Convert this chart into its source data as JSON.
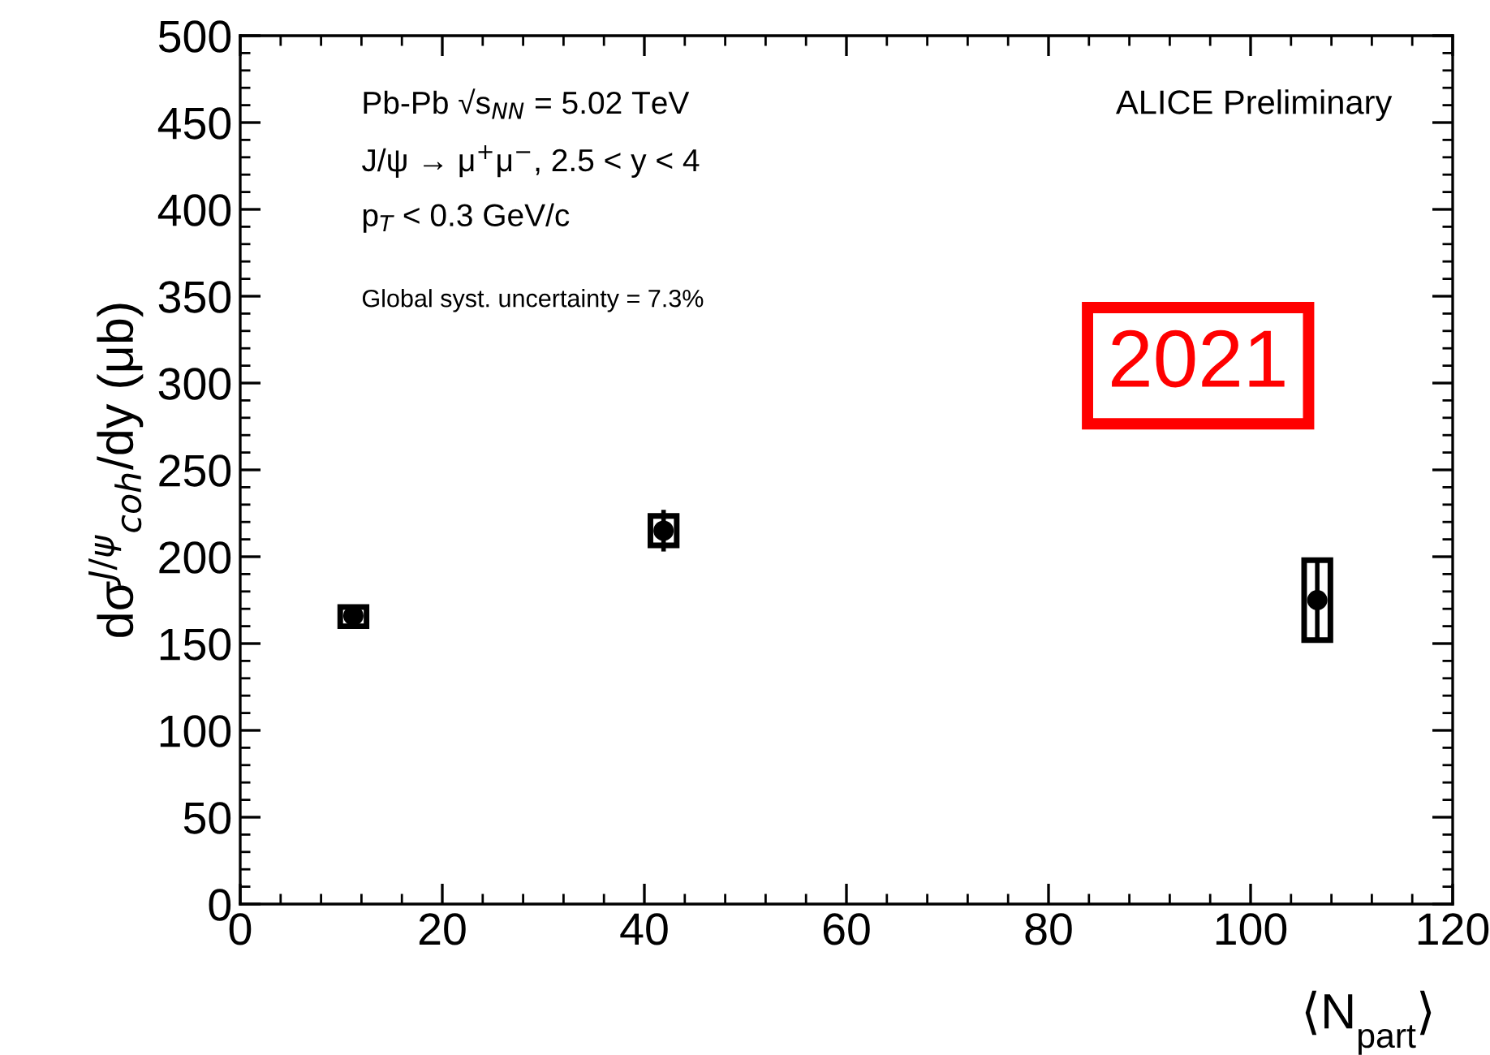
{
  "chart_data": {
    "type": "scatter",
    "ylabel": "dσ$^{J/ψ}$$_{coh}$/dy (μb)",
    "xlabel": "⟨N$_{part}$⟩",
    "xlim": [
      0,
      120
    ],
    "xticks": [
      0,
      20,
      40,
      60,
      80,
      100,
      120
    ],
    "ylim": [
      0,
      500
    ],
    "yticks": [
      0,
      50,
      100,
      150,
      200,
      250,
      300,
      350,
      400,
      450,
      500
    ],
    "grid": false,
    "legend": false,
    "marker": "circle",
    "series": [
      {
        "color": "#000000",
        "x": [
          11.2,
          41.9,
          106.6
        ],
        "values": [
          166,
          215,
          175
        ],
        "errors": [
          null,
          12,
          23
        ]
      },
      {
        "type": "bar",
        "color": "#000000",
        "x": [
          11.2,
          41.9,
          106.6
        ],
        "base": [
          160,
          206.5,
          152
        ],
        "values": [
          11,
          17,
          46
        ]
      }
    ],
    "annotations": [
      "Pb-Pb √s$_{NN}$ = 5.02 TeV",
      "J/ψ → μ$^{+}$μ$^{−}$, 2.5 < y < 4",
      "p$_{T}$ < 0.3 GeV/c",
      "Global syst. uncertainty = 7.3%",
      "ALICE Preliminary",
      "2021"
    ]
  }
}
